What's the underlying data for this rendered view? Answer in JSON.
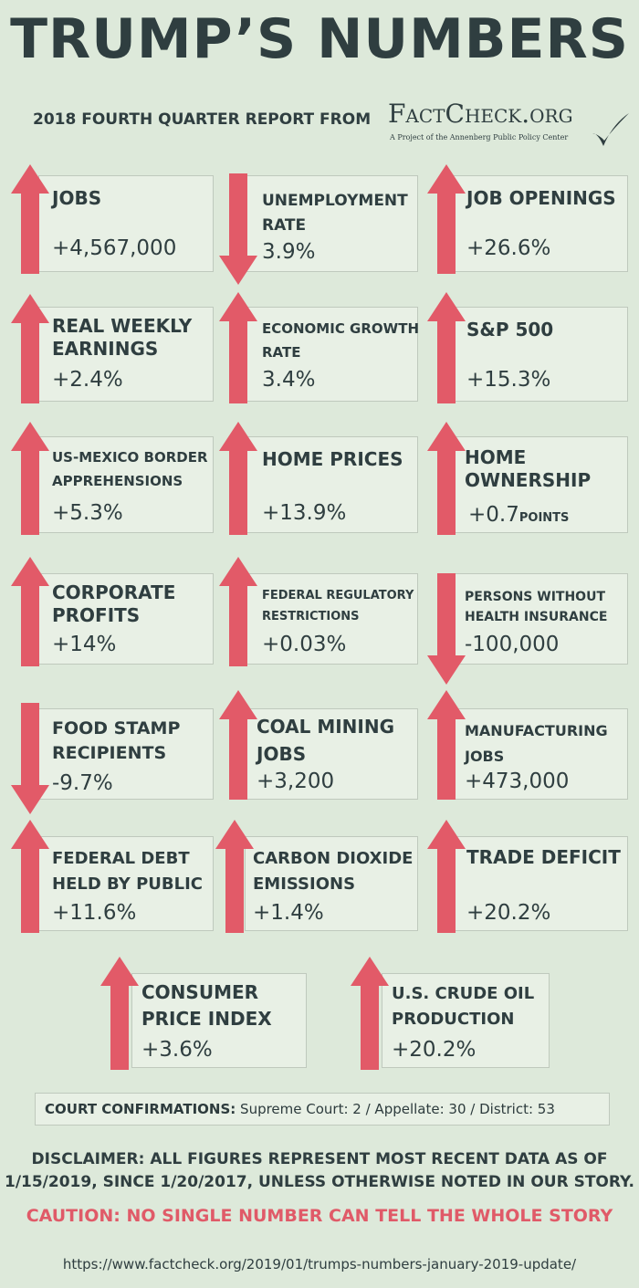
{
  "header": {
    "title": "TRUMP’S NUMBERS",
    "subtitle": "2018 FOURTH QUARTER REPORT FROM",
    "logo_text": "FactCheck.org",
    "logo_tagline": "A Project of the Annenberg Public Policy Center"
  },
  "colors": {
    "background": "#dde9da",
    "card": "#e8f0e5",
    "arrow": "#e25a68",
    "text": "#2f3e40"
  },
  "metrics": [
    {
      "label": "JOBS",
      "value": "+4,567,000",
      "direction": "up"
    },
    {
      "label": "UNEMPLOYMENT RATE",
      "value": "3.9%",
      "direction": "down"
    },
    {
      "label": "JOB OPENINGS",
      "value": "+26.6%",
      "direction": "up"
    },
    {
      "label": "REAL WEEKLY EARNINGS",
      "value": "+2.4%",
      "direction": "up"
    },
    {
      "label": "ECONOMIC GROWTH RATE",
      "value": "3.4%",
      "direction": "up"
    },
    {
      "label": "S&P 500",
      "value": "+15.3%",
      "direction": "up"
    },
    {
      "label": "US-MEXICO BORDER APPREHENSIONS",
      "value": "+5.3%",
      "direction": "up"
    },
    {
      "label": "HOME PRICES",
      "value": "+13.9%",
      "direction": "up"
    },
    {
      "label": "HOME OWNERSHIP",
      "value": "+0.7",
      "unit": "POINTS",
      "direction": "up"
    },
    {
      "label": "CORPORATE PROFITS",
      "value": "+14%",
      "direction": "up"
    },
    {
      "label": "FEDERAL REGULATORY RESTRICTIONS",
      "value": "+0.03%",
      "direction": "up"
    },
    {
      "label": "PERSONS WITHOUT HEALTH INSURANCE",
      "value": "-100,000",
      "direction": "down"
    },
    {
      "label": "FOOD STAMP RECIPIENTS",
      "value": "-9.7%",
      "direction": "down"
    },
    {
      "label": "COAL MINING JOBS",
      "value": "+3,200",
      "direction": "up"
    },
    {
      "label": "MANUFACTURING JOBS",
      "value": "+473,000",
      "direction": "up"
    },
    {
      "label": "FEDERAL DEBT HELD BY PUBLIC",
      "value": "+11.6%",
      "direction": "up"
    },
    {
      "label": "CARBON DIOXIDE EMISSIONS",
      "value": "+1.4%",
      "direction": "up"
    },
    {
      "label": "TRADE DEFICIT",
      "value": "+20.2%",
      "direction": "up"
    },
    {
      "label": "CONSUMER PRICE INDEX",
      "value": "+3.6%",
      "direction": "up"
    },
    {
      "label": "U.S. CRUDE OIL PRODUCTION",
      "value": "+20.2%",
      "direction": "up"
    }
  ],
  "court": {
    "label": "COURT CONFIRMATIONS:",
    "text": "Supreme Court: 2 / Appellate: 30 / District: 53"
  },
  "disclaimer": {
    "line1": "DISCLAIMER:  ALL FIGURES REPRESENT MOST RECENT DATA AS OF",
    "line2": "1/15/2019, SINCE 1/20/2017, UNLESS OTHERWISE NOTED IN OUR STORY."
  },
  "caution": "CAUTION: NO SINGLE NUMBER CAN TELL THE WHOLE STORY",
  "url": "https://www.factcheck.org/2019/01/trumps-numbers-january-2019-update/"
}
